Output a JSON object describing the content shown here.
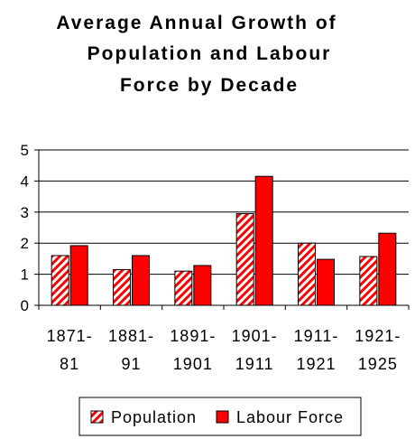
{
  "chart_data": {
    "type": "bar",
    "title_lines": [
      "Average Annual Growth of",
      "Population and Labour",
      "Force by Decade"
    ],
    "categories": [
      [
        "1871-",
        "81"
      ],
      [
        "1881-",
        "91"
      ],
      [
        "1891-",
        "1901"
      ],
      [
        "1901-",
        "1911"
      ],
      [
        "1911-",
        "1921"
      ],
      [
        "1921-",
        "1925"
      ]
    ],
    "series": [
      {
        "name": "Population",
        "values": [
          1.6,
          1.15,
          1.1,
          2.95,
          2.0,
          1.57
        ],
        "color": "#ff0000",
        "pattern": "hatched"
      },
      {
        "name": "Labour Force",
        "values": [
          1.92,
          1.6,
          1.28,
          4.15,
          1.48,
          2.32
        ],
        "color": "#ff0000",
        "pattern": "solid"
      }
    ],
    "yticks": [
      0,
      1,
      2,
      3,
      4,
      5
    ],
    "ylim": [
      0,
      5
    ],
    "grid": true,
    "legend_position": "bottom"
  }
}
